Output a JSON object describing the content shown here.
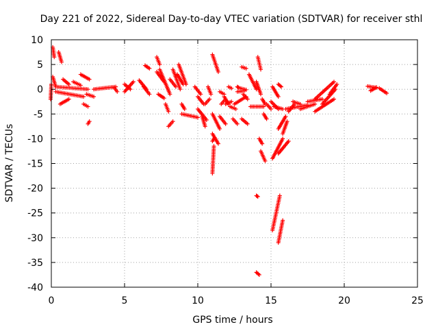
{
  "chart_data": {
    "type": "scatter",
    "title": "Day 221 of 2022, Sidereal Day-to-day VTEC variation (SDTVAR) for receiver sthl",
    "xlabel": "GPS time / hours",
    "ylabel": "SDTVAR / TECUs",
    "xlim": [
      0,
      25
    ],
    "ylim": [
      -40,
      10
    ],
    "xticks": [
      "0",
      "5",
      "10",
      "15",
      "20",
      "25"
    ],
    "yticks": [
      "10",
      "5",
      "0",
      "-5",
      "-10",
      "-15",
      "-20",
      "-25",
      "-30",
      "-35",
      "-40"
    ],
    "grid": true,
    "marker": "+",
    "color": "#ff0000",
    "series": [
      {
        "name": "SDTVAR",
        "segments": [
          [
            [
              0.0,
              1.0
            ],
            [
              -0.05,
              -2.0
            ]
          ],
          [
            [
              0.1,
              8.5
            ],
            [
              0.2,
              6.5
            ]
          ],
          [
            [
              0.5,
              7.5
            ],
            [
              0.7,
              5.5
            ]
          ],
          [
            [
              0.1,
              2.5
            ],
            [
              0.3,
              0.5
            ]
          ],
          [
            [
              0.3,
              0.5
            ],
            [
              2.5,
              0.0
            ]
          ],
          [
            [
              0.3,
              -0.5
            ],
            [
              2.2,
              -1.5
            ]
          ],
          [
            [
              0.6,
              -3.0
            ],
            [
              1.2,
              -2.0
            ]
          ],
          [
            [
              0.8,
              2.0
            ],
            [
              1.2,
              1.0
            ]
          ],
          [
            [
              1.5,
              1.5
            ],
            [
              2.0,
              0.8
            ]
          ],
          [
            [
              2.0,
              3.0
            ],
            [
              2.6,
              2.0
            ]
          ],
          [
            [
              2.2,
              -3.0
            ],
            [
              2.5,
              -3.5
            ]
          ],
          [
            [
              2.4,
              -1.0
            ],
            [
              2.9,
              -1.5
            ]
          ],
          [
            [
              2.5,
              -7.0
            ],
            [
              2.6,
              -6.5
            ]
          ],
          [
            [
              2.9,
              0.0
            ],
            [
              4.4,
              0.5
            ]
          ],
          [
            [
              4.3,
              0.3
            ],
            [
              4.5,
              -0.5
            ]
          ],
          [
            [
              5.0,
              1.0
            ],
            [
              5.4,
              0.0
            ]
          ],
          [
            [
              5.0,
              -0.5
            ],
            [
              5.6,
              1.5
            ]
          ],
          [
            [
              6.0,
              1.8
            ],
            [
              6.5,
              0.0
            ]
          ],
          [
            [
              6.3,
              0.5
            ],
            [
              6.7,
              -1.0
            ]
          ],
          [
            [
              6.4,
              4.8
            ],
            [
              6.7,
              4.2
            ]
          ],
          [
            [
              7.2,
              6.5
            ],
            [
              7.4,
              5.0
            ]
          ],
          [
            [
              7.2,
              3.5
            ],
            [
              7.7,
              1.5
            ]
          ],
          [
            [
              7.3,
              -1.0
            ],
            [
              7.7,
              -1.8
            ]
          ],
          [
            [
              7.4,
              4.0
            ],
            [
              8.1,
              -1.0
            ]
          ],
          [
            [
              7.8,
              -3.0
            ],
            [
              8.0,
              -4.5
            ]
          ],
          [
            [
              8.0,
              -7.5
            ],
            [
              8.3,
              -6.5
            ]
          ],
          [
            [
              8.1,
              2.0
            ],
            [
              8.5,
              0.5
            ]
          ],
          [
            [
              8.3,
              4.0
            ],
            [
              8.8,
              0.0
            ]
          ],
          [
            [
              8.6,
              3.0
            ],
            [
              9.0,
              1.0
            ]
          ],
          [
            [
              8.7,
              5.0
            ],
            [
              9.2,
              1.0
            ]
          ],
          [
            [
              8.9,
              -3.0
            ],
            [
              9.1,
              -4.0
            ]
          ],
          [
            [
              8.9,
              -5.0
            ],
            [
              10.0,
              -5.7
            ]
          ],
          [
            [
              9.8,
              0.5
            ],
            [
              10.2,
              -1.0
            ]
          ],
          [
            [
              10.0,
              -4.0
            ],
            [
              10.6,
              -6.2
            ]
          ],
          [
            [
              10.0,
              -1.5
            ],
            [
              10.4,
              -3.0
            ]
          ],
          [
            [
              10.3,
              -5.5
            ],
            [
              10.5,
              -7.5
            ]
          ],
          [
            [
              10.5,
              -3.0
            ],
            [
              10.8,
              -2.0
            ]
          ],
          [
            [
              10.7,
              0.5
            ],
            [
              10.9,
              -1.0
            ]
          ],
          [
            [
              11.0,
              7.0
            ],
            [
              11.4,
              3.5
            ]
          ],
          [
            [
              11.0,
              -10.5
            ],
            [
              11.1,
              -10.0
            ]
          ],
          [
            [
              11.1,
              -11.5
            ],
            [
              11.0,
              -17.0
            ]
          ],
          [
            [
              11.0,
              -9.0
            ],
            [
              11.4,
              -11.0
            ]
          ],
          [
            [
              11.0,
              -5.0
            ],
            [
              11.5,
              -8.0
            ]
          ],
          [
            [
              11.5,
              -0.5
            ],
            [
              11.8,
              -1.0
            ]
          ],
          [
            [
              11.5,
              -5.5
            ],
            [
              11.9,
              -7.0
            ]
          ],
          [
            [
              11.6,
              -3.0
            ],
            [
              11.9,
              -2.0
            ]
          ],
          [
            [
              11.8,
              -1.5
            ],
            [
              12.1,
              -3.0
            ]
          ],
          [
            [
              11.9,
              -3.0
            ],
            [
              12.3,
              -2.5
            ]
          ],
          [
            [
              12.1,
              0.5
            ],
            [
              12.3,
              0.2
            ]
          ],
          [
            [
              12.2,
              -3.5
            ],
            [
              12.6,
              -4.0
            ]
          ],
          [
            [
              12.4,
              -6.0
            ],
            [
              12.7,
              -7.0
            ]
          ],
          [
            [
              12.5,
              -3.0
            ],
            [
              13.3,
              -1.5
            ]
          ],
          [
            [
              12.7,
              -0.5
            ],
            [
              13.2,
              -0.3
            ]
          ],
          [
            [
              12.7,
              0.5
            ],
            [
              12.8,
              0.3
            ]
          ],
          [
            [
              12.9,
              0.2
            ],
            [
              13.3,
              -0.1
            ]
          ],
          [
            [
              13.0,
              4.5
            ],
            [
              13.3,
              4.2
            ]
          ],
          [
            [
              13.0,
              -6.0
            ],
            [
              13.4,
              -7.0
            ]
          ],
          [
            [
              13.1,
              -1.0
            ],
            [
              13.4,
              -2.0
            ]
          ],
          [
            [
              13.5,
              3.0
            ],
            [
              14.0,
              0.0
            ]
          ],
          [
            [
              13.6,
              -3.5
            ],
            [
              14.5,
              -3.5
            ]
          ],
          [
            [
              14.0,
              1.5
            ],
            [
              14.3,
              -1.0
            ]
          ],
          [
            [
              14.1,
              6.5
            ],
            [
              14.3,
              4.0
            ]
          ],
          [
            [
              14.0,
              -21.5
            ],
            [
              14.1,
              -21.7
            ]
          ],
          [
            [
              14.0,
              -37.0
            ],
            [
              14.2,
              -37.5
            ]
          ],
          [
            [
              14.2,
              -10.0
            ],
            [
              14.4,
              -11.0
            ]
          ],
          [
            [
              14.3,
              -12.5
            ],
            [
              14.6,
              -14.5
            ]
          ],
          [
            [
              14.4,
              -2.0
            ],
            [
              14.6,
              -3.0
            ]
          ],
          [
            [
              14.5,
              -5.0
            ],
            [
              14.7,
              -6.0
            ]
          ],
          [
            [
              14.7,
              -3.0
            ],
            [
              15.0,
              -4.0
            ]
          ],
          [
            [
              15.0,
              -2.5
            ],
            [
              15.5,
              -4.0
            ]
          ],
          [
            [
              15.1,
              0.5
            ],
            [
              15.5,
              -1.5
            ]
          ],
          [
            [
              15.1,
              -28.5
            ],
            [
              15.6,
              -21.5
            ]
          ],
          [
            [
              15.1,
              -14.0
            ],
            [
              15.8,
              -10.0
            ]
          ],
          [
            [
              15.2,
              -3.5
            ],
            [
              15.8,
              -4.0
            ]
          ],
          [
            [
              15.5,
              1.0
            ],
            [
              15.7,
              0.5
            ]
          ],
          [
            [
              15.5,
              -31.0
            ],
            [
              15.8,
              -26.5
            ]
          ],
          [
            [
              15.5,
              -8.0
            ],
            [
              16.0,
              -5.5
            ]
          ],
          [
            [
              15.5,
              -13.0
            ],
            [
              16.2,
              -10.5
            ]
          ],
          [
            [
              15.8,
              -9.0
            ],
            [
              16.1,
              -6.5
            ]
          ],
          [
            [
              16.0,
              -4.0
            ],
            [
              17.5,
              -3.2
            ]
          ],
          [
            [
              16.2,
              -4.5
            ],
            [
              16.6,
              -3.0
            ]
          ],
          [
            [
              16.5,
              -2.5
            ],
            [
              17.0,
              -3.0
            ]
          ],
          [
            [
              17.0,
              -4.0
            ],
            [
              18.0,
              -3.0
            ]
          ],
          [
            [
              17.5,
              -2.5
            ],
            [
              18.5,
              -2.0
            ]
          ],
          [
            [
              18.0,
              -4.5
            ],
            [
              19.3,
              -2.0
            ]
          ],
          [
            [
              18.0,
              -2.0
            ],
            [
              19.3,
              1.5
            ]
          ],
          [
            [
              18.5,
              -3.0
            ],
            [
              19.4,
              0.0
            ]
          ],
          [
            [
              19.0,
              -1.0
            ],
            [
              19.5,
              1.0
            ]
          ],
          [
            [
              21.6,
              0.6
            ],
            [
              22.2,
              0.3
            ]
          ],
          [
            [
              21.8,
              -0.3
            ],
            [
              22.2,
              0.4
            ]
          ],
          [
            [
              22.4,
              0.2
            ],
            [
              22.9,
              -0.8
            ]
          ]
        ]
      }
    ]
  }
}
